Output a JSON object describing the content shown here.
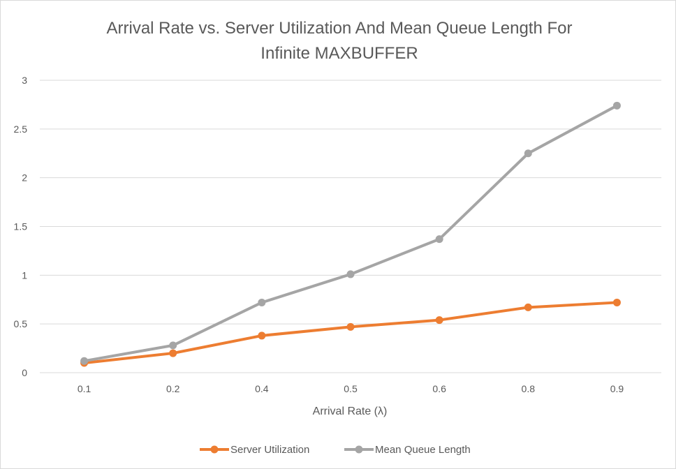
{
  "chart_data": {
    "type": "line",
    "title_line1": "Arrival Rate vs. Server Utilization And Mean Queue Length For",
    "title_line2": "Infinite MAXBUFFER",
    "xlabel": "Arrival Rate (λ)",
    "ylabel": "",
    "categories": [
      "0.1",
      "0.2",
      "0.4",
      "0.5",
      "0.6",
      "0.8",
      "0.9"
    ],
    "ylim": [
      0,
      3
    ],
    "yticks": [
      "0",
      "0.5",
      "1",
      "1.5",
      "2",
      "2.5",
      "3"
    ],
    "grid": true,
    "legend_position": "bottom",
    "series": [
      {
        "name": "Server Utilization",
        "color": "#ED7D31",
        "values": [
          0.1,
          0.2,
          0.38,
          0.47,
          0.54,
          0.67,
          0.72
        ]
      },
      {
        "name": "Mean Queue Length",
        "color": "#A5A5A5",
        "values": [
          0.12,
          0.28,
          0.72,
          1.01,
          1.37,
          2.25,
          2.74
        ]
      }
    ]
  }
}
